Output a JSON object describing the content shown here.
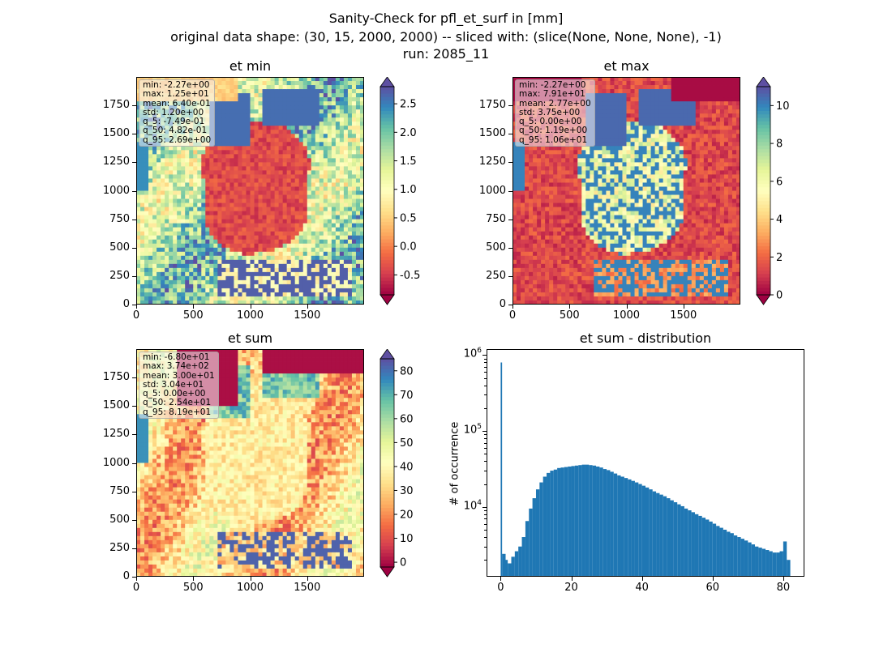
{
  "figure": {
    "title_lines": [
      "Sanity-Check for pfl_et_surf in [mm]",
      "original data shape: (30, 15, 2000, 2000) -- sliced with: (slice(None, None, None), -1)",
      "run: 2085_11"
    ]
  },
  "panels": {
    "et_min": {
      "title": "et min",
      "stats": [
        "min: -2.27e+00",
        "max: 1.25e+01",
        "mean: 6.40e-01",
        "std: 1.20e+00",
        "q_5: -7.49e-01",
        "q_50: 4.82e-01",
        "q_95: 2.69e+00"
      ],
      "x_ticks": [
        "0",
        "500",
        "1000",
        "1500"
      ],
      "y_ticks": [
        "0",
        "250",
        "500",
        "750",
        "1000",
        "1250",
        "1500",
        "1750"
      ],
      "colorbar_ticks": [
        "-0.5",
        "0.0",
        "0.5",
        "1.0",
        "1.5",
        "2.0",
        "2.5"
      ]
    },
    "et_max": {
      "title": "et max",
      "stats": [
        "min: -2.27e+00",
        "max: 7.91e+01",
        "mean: 2.77e+00",
        "std: 3.75e+00",
        "q_5: 0.00e+00",
        "q_50: 1.19e+00",
        "q_95: 1.06e+01"
      ],
      "x_ticks": [
        "0",
        "500",
        "1000",
        "1500"
      ],
      "y_ticks": [
        "0",
        "250",
        "500",
        "750",
        "1000",
        "1250",
        "1500",
        "1750"
      ],
      "colorbar_ticks": [
        "0",
        "2",
        "4",
        "6",
        "8",
        "10"
      ]
    },
    "et_sum": {
      "title": "et sum",
      "stats": [
        "min: -6.80e+01",
        "max: 3.74e+02",
        "mean: 3.00e+01",
        "std: 3.04e+01",
        "q_5: 0.00e+00",
        "q_50: 2.54e+01",
        "q_95: 8.19e+01"
      ],
      "x_ticks": [
        "0",
        "500",
        "1000",
        "1500"
      ],
      "y_ticks": [
        "0",
        "250",
        "500",
        "750",
        "1000",
        "1250",
        "1500",
        "1750"
      ],
      "colorbar_ticks": [
        "0",
        "10",
        "20",
        "30",
        "40",
        "50",
        "60",
        "70",
        "80"
      ]
    },
    "hist": {
      "title": "et sum - distribution",
      "ylabel": "# of occurrence",
      "x_ticks": [
        "0",
        "20",
        "40",
        "60",
        "80"
      ]
    }
  },
  "colormap": "Spectral",
  "hist_color": "#1f77b4",
  "chart_data": [
    {
      "type": "heatmap",
      "title": "et min",
      "xlim": [
        0,
        2000
      ],
      "ylim": [
        0,
        2000
      ],
      "colorbar_range": [
        -0.85,
        2.8
      ]
    },
    {
      "type": "heatmap",
      "title": "et max",
      "xlim": [
        0,
        2000
      ],
      "ylim": [
        0,
        2000
      ],
      "colorbar_range": [
        0,
        11
      ]
    },
    {
      "type": "heatmap",
      "title": "et sum",
      "xlim": [
        0,
        2000
      ],
      "ylim": [
        0,
        2000
      ],
      "colorbar_range": [
        -2,
        85
      ]
    },
    {
      "type": "bar",
      "title": "et sum - distribution",
      "ylabel": "# of occurrence",
      "yscale": "log",
      "xlim": [
        -4,
        86
      ],
      "ylim": [
        1200,
        1200000
      ],
      "x": [
        0,
        0.4,
        1,
        2,
        3,
        4,
        5,
        6,
        7,
        8,
        9,
        10,
        11,
        12,
        13,
        14,
        15,
        16,
        17,
        18,
        19,
        20,
        21,
        22,
        23,
        24,
        25,
        26,
        27,
        28,
        29,
        30,
        31,
        32,
        33,
        34,
        35,
        36,
        37,
        38,
        39,
        40,
        41,
        42,
        43,
        44,
        45,
        46,
        47,
        48,
        49,
        50,
        51,
        52,
        53,
        54,
        55,
        56,
        57,
        58,
        59,
        60,
        61,
        62,
        63,
        64,
        65,
        66,
        67,
        68,
        69,
        70,
        71,
        72,
        73,
        74,
        75,
        76,
        77,
        78,
        79,
        80,
        81
      ],
      "values": [
        800000,
        2400,
        2000,
        1800,
        2200,
        2600,
        3000,
        4000,
        6500,
        9500,
        13000,
        17000,
        21000,
        25000,
        28000,
        30000,
        31000,
        32500,
        33000,
        33500,
        34000,
        34500,
        35000,
        35500,
        36000,
        36000,
        35500,
        35000,
        34000,
        33000,
        31500,
        30500,
        29000,
        27500,
        26000,
        25000,
        24000,
        23000,
        22000,
        21000,
        20000,
        19000,
        18000,
        17000,
        16000,
        15200,
        14500,
        13800,
        13000,
        12200,
        11500,
        10800,
        10200,
        9500,
        9000,
        8500,
        8000,
        7600,
        7200,
        6800,
        6400,
        6000,
        5600,
        5300,
        5000,
        4700,
        4500,
        4200,
        4000,
        3800,
        3600,
        3400,
        3200,
        3000,
        2900,
        2800,
        2700,
        2600,
        2500,
        2500,
        2600,
        3500,
        2000
      ]
    }
  ]
}
